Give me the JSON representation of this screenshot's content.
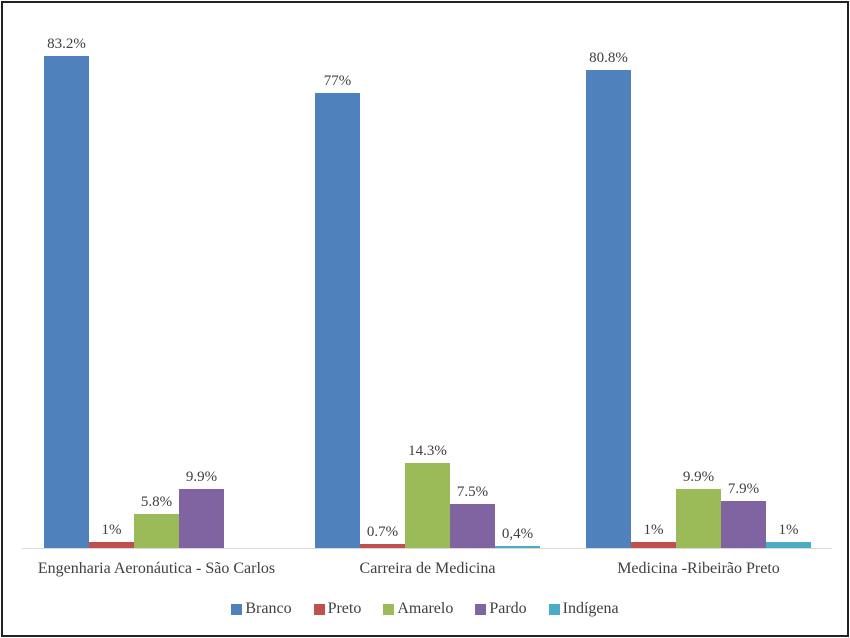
{
  "chart_data": {
    "type": "bar",
    "title": "",
    "xlabel": "",
    "ylabel": "",
    "ylim": [
      0,
      90
    ],
    "grid": false,
    "legend_position": "bottom",
    "categories": [
      "Engenharia Aeronáutica - São Carlos",
      "Carreira de Medicina",
      "Medicina -Ribeirão Preto"
    ],
    "series": [
      {
        "name": "Branco",
        "color": "#4f81bd",
        "values": [
          83.2,
          77,
          80.8
        ],
        "labels": [
          "83.2%",
          "77%",
          "80.8%"
        ]
      },
      {
        "name": "Preto",
        "color": "#c0504d",
        "values": [
          1,
          0.7,
          1
        ],
        "labels": [
          "1%",
          "0.7%",
          "1%"
        ]
      },
      {
        "name": "Amarelo",
        "color": "#9bbb59",
        "values": [
          5.8,
          14.3,
          9.9
        ],
        "labels": [
          "5.8%",
          "14.3%",
          "9.9%"
        ]
      },
      {
        "name": "Pardo",
        "color": "#8064a2",
        "values": [
          9.9,
          7.5,
          7.9
        ],
        "labels": [
          "9.9%",
          "7.5%",
          "7.9%"
        ]
      },
      {
        "name": "Indígena",
        "color": "#4bacc6",
        "values": [
          0,
          0.4,
          1
        ],
        "labels": [
          "",
          "0,4%",
          "1%"
        ]
      }
    ]
  }
}
